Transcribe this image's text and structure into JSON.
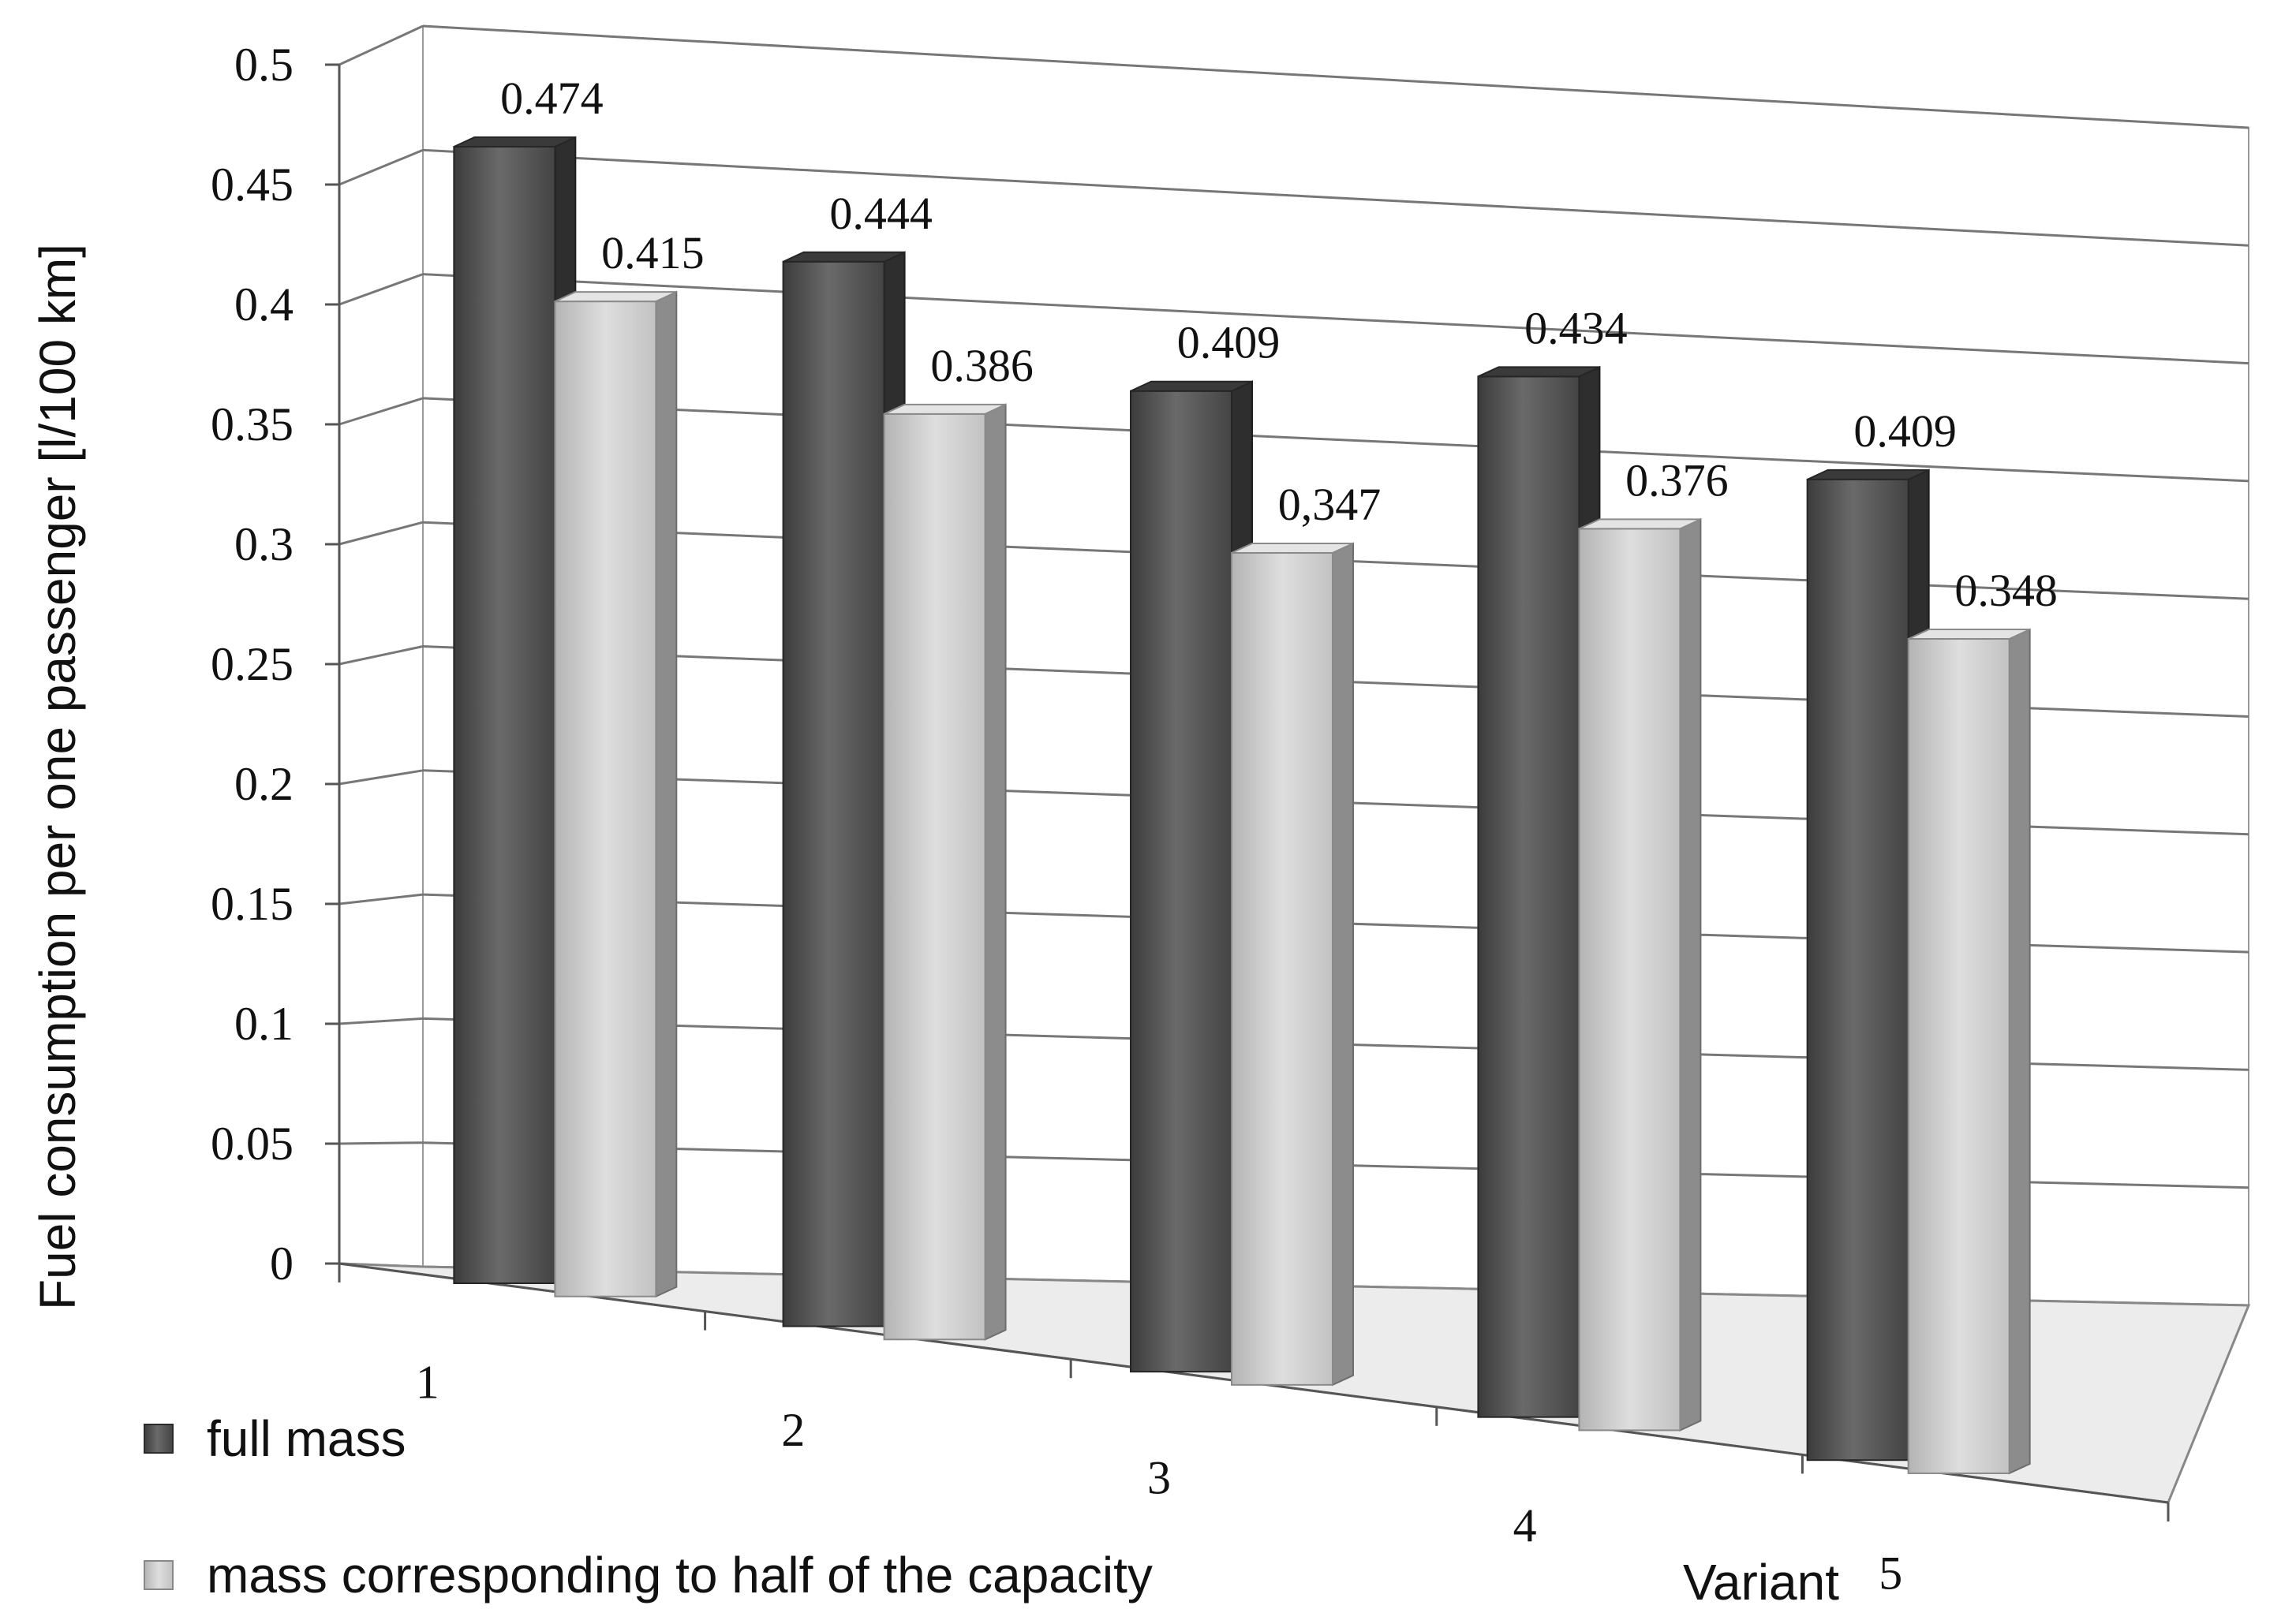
{
  "chart_data": {
    "type": "bar",
    "style": "3d-clustered-column",
    "title": "",
    "xlabel": "Variant",
    "ylabel": "Fuel consumption per one passenger [l/100 km]",
    "ylim": [
      0,
      0.5
    ],
    "yticks": [
      "0",
      "0.05",
      "0.1",
      "0.15",
      "0.2",
      "0.25",
      "0.3",
      "0.35",
      "0.4",
      "0.45",
      "0.5"
    ],
    "categories": [
      "1",
      "2",
      "3",
      "4",
      "5"
    ],
    "grid": true,
    "legend_position": "bottom-left",
    "series": [
      {
        "name": "full mass",
        "color": "#505050",
        "values": [
          0.474,
          0.444,
          0.409,
          0.434,
          0.409
        ],
        "labels": [
          "0.474",
          "0.444",
          "0.409",
          "0.434",
          "0.409"
        ]
      },
      {
        "name": "mass corresponding to half of the capacity",
        "color": "#c8c8c8",
        "values": [
          0.415,
          0.386,
          0.347,
          0.376,
          0.348
        ],
        "labels": [
          "0.415",
          "0.386",
          "0,347",
          "0.376",
          "0.348"
        ]
      }
    ]
  }
}
